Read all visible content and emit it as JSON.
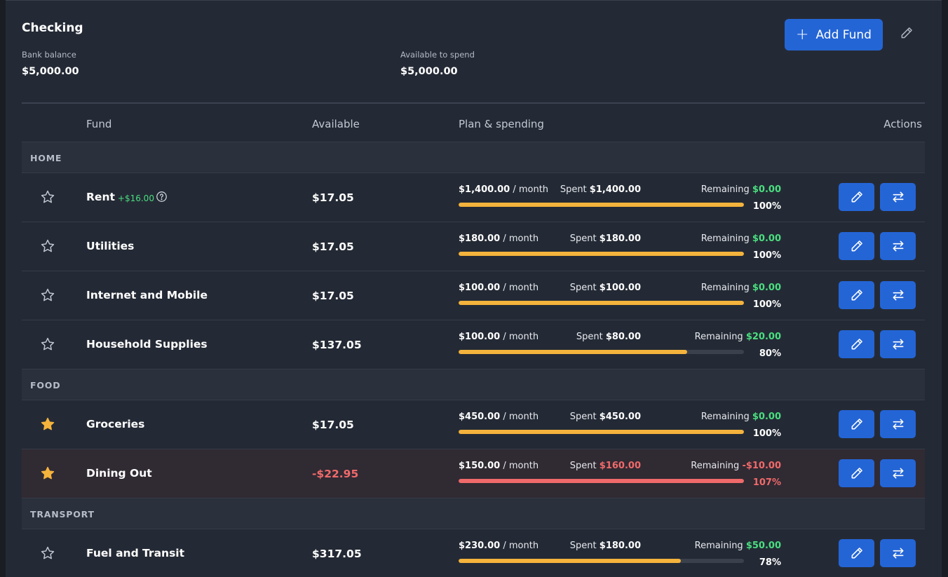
{
  "account": {
    "title": "Checking",
    "bank_balance_label": "Bank balance",
    "bank_balance": "$5,000.00",
    "available_label": "Available to spend",
    "available": "$5,000.00",
    "add_fund_label": "Add Fund"
  },
  "table": {
    "col_fund": "Fund",
    "col_available": "Available",
    "col_plan": "Plan & spending",
    "col_actions": "Actions"
  },
  "labels": {
    "per_month": "/ month",
    "spent": "Spent",
    "remaining": "Remaining"
  },
  "groups": [
    {
      "name": "HOME",
      "funds": [
        {
          "name": "Rent",
          "extra": "+$16.00",
          "starred": false,
          "available": "$17.05",
          "plan": "$1,400.00",
          "spent": "$1,400.00",
          "remaining": "$0.00",
          "percent_label": "100%",
          "progress": 1.0,
          "over": false
        },
        {
          "name": "Utilities",
          "starred": false,
          "available": "$17.05",
          "plan": "$180.00",
          "spent": "$180.00",
          "remaining": "$0.00",
          "percent_label": "100%",
          "progress": 1.0,
          "over": false
        },
        {
          "name": "Internet and Mobile",
          "starred": false,
          "available": "$17.05",
          "plan": "$100.00",
          "spent": "$100.00",
          "remaining": "$0.00",
          "percent_label": "100%",
          "progress": 1.0,
          "over": false
        },
        {
          "name": "Household Supplies",
          "starred": false,
          "available": "$137.05",
          "plan": "$100.00",
          "spent": "$80.00",
          "remaining": "$20.00",
          "percent_label": "80%",
          "progress": 0.8,
          "over": false
        }
      ]
    },
    {
      "name": "FOOD",
      "funds": [
        {
          "name": "Groceries",
          "starred": true,
          "available": "$17.05",
          "plan": "$450.00",
          "spent": "$450.00",
          "remaining": "$0.00",
          "percent_label": "100%",
          "progress": 1.0,
          "over": false
        },
        {
          "name": "Dining Out",
          "starred": true,
          "available": "-$22.95",
          "plan": "$150.00",
          "spent": "$160.00",
          "remaining": "-$10.00",
          "percent_label": "107%",
          "progress": 1.0,
          "over": true
        }
      ]
    },
    {
      "name": "TRANSPORT",
      "funds": [
        {
          "name": "Fuel and Transit",
          "starred": false,
          "available": "$317.05",
          "plan": "$230.00",
          "spent": "$180.00",
          "remaining": "$50.00",
          "percent_label": "78%",
          "progress": 0.78,
          "over": false
        }
      ]
    }
  ],
  "colors": {
    "accent": "#2465d6",
    "progress": "#f4b33c",
    "over": "#ef6a6a",
    "positive": "#4ade80",
    "star": "#f4b33c"
  }
}
